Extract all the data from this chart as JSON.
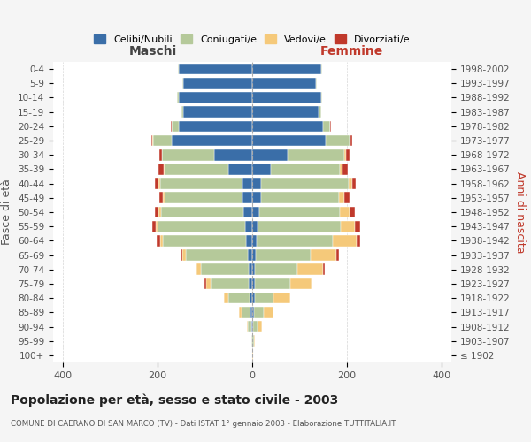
{
  "age_groups": [
    "100+",
    "95-99",
    "90-94",
    "85-89",
    "80-84",
    "75-79",
    "70-74",
    "65-69",
    "60-64",
    "55-59",
    "50-54",
    "45-49",
    "40-44",
    "35-39",
    "30-34",
    "25-29",
    "20-24",
    "15-19",
    "10-14",
    "5-9",
    "0-4"
  ],
  "birth_years": [
    "≤ 1902",
    "1903-1907",
    "1908-1912",
    "1913-1917",
    "1918-1922",
    "1923-1927",
    "1928-1932",
    "1933-1937",
    "1938-1942",
    "1943-1947",
    "1948-1952",
    "1953-1957",
    "1958-1962",
    "1963-1967",
    "1968-1972",
    "1973-1977",
    "1978-1982",
    "1983-1987",
    "1988-1992",
    "1993-1997",
    "1998-2002"
  ],
  "male": {
    "celibi": [
      0,
      0,
      2,
      3,
      5,
      8,
      8,
      10,
      14,
      15,
      18,
      20,
      20,
      50,
      80,
      170,
      155,
      145,
      155,
      145,
      155
    ],
    "coniugati": [
      0,
      2,
      8,
      20,
      45,
      80,
      100,
      130,
      175,
      185,
      175,
      165,
      175,
      135,
      110,
      40,
      15,
      5,
      3,
      2,
      2
    ],
    "vedovi": [
      0,
      0,
      2,
      5,
      10,
      10,
      10,
      8,
      6,
      4,
      4,
      3,
      2,
      2,
      1,
      1,
      0,
      0,
      0,
      0,
      0
    ],
    "divorziati": [
      0,
      0,
      0,
      0,
      0,
      2,
      2,
      4,
      6,
      7,
      8,
      8,
      8,
      10,
      5,
      2,
      1,
      1,
      0,
      0,
      0
    ]
  },
  "female": {
    "nubili": [
      0,
      0,
      2,
      3,
      5,
      5,
      5,
      8,
      10,
      12,
      15,
      18,
      18,
      40,
      75,
      155,
      150,
      140,
      145,
      135,
      145
    ],
    "coniugate": [
      0,
      3,
      10,
      22,
      40,
      75,
      90,
      115,
      160,
      175,
      170,
      165,
      185,
      145,
      120,
      50,
      15,
      5,
      3,
      2,
      2
    ],
    "vedove": [
      1,
      3,
      8,
      20,
      35,
      45,
      55,
      55,
      50,
      30,
      20,
      12,
      8,
      5,
      2,
      2,
      0,
      0,
      0,
      0,
      0
    ],
    "divorziate": [
      0,
      0,
      0,
      0,
      1,
      2,
      3,
      5,
      8,
      10,
      12,
      10,
      8,
      12,
      8,
      3,
      1,
      0,
      0,
      0,
      0
    ]
  },
  "colors": {
    "celibi": "#3a6ea8",
    "coniugati": "#b5c99a",
    "vedovi": "#f5c97a",
    "divorziati": "#c0392b"
  },
  "xlim": 420,
  "title": "Popolazione per età, sesso e stato civile - 2003",
  "subtitle": "COMUNE DI CAERANO DI SAN MARCO (TV) - Dati ISTAT 1° gennaio 2003 - Elaborazione TUTTITALIA.IT",
  "ylabel_left": "Fasce di età",
  "ylabel_right": "Anni di nascita",
  "legend_labels": [
    "Celibi/Nubili",
    "Coniugati/e",
    "Vedovi/e",
    "Divorziati/e"
  ],
  "maschi_label": "Maschi",
  "femmine_label": "Femmine",
  "bg_color": "#f5f5f5",
  "plot_bg": "#ffffff"
}
